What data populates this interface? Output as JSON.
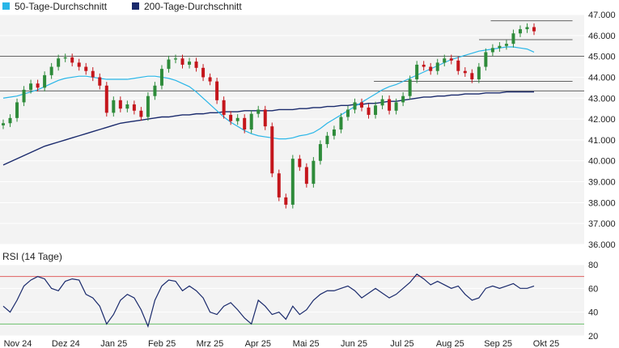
{
  "legend": [
    {
      "label": "50-Tage-Durchschnitt",
      "color": "#29b6e8"
    },
    {
      "label": "200-Tage-Durchschnitt",
      "color": "#1a2a6c"
    }
  ],
  "colors": {
    "up": "#2e8b3a",
    "down": "#c4161c",
    "rsi_line": "#1a2a6c",
    "rsi_upper": "#e06060",
    "rsi_lower": "#6cc06c",
    "panel_bg": "#f3f3f3",
    "grid": "#ffffff",
    "level_line": "#333333"
  },
  "rsi_title": "RSI (14 Tage)",
  "chart_data": {
    "type": "candlestick",
    "price": {
      "ylim": [
        36000,
        47000
      ],
      "y_ticks": [
        "47.000",
        "46.000",
        "45.000",
        "44.000",
        "43.000",
        "42.000",
        "41.000",
        "40.000",
        "39.000",
        "38.000",
        "37.000",
        "36.000"
      ],
      "y_tick_values": [
        47000,
        46000,
        45000,
        44000,
        43000,
        42000,
        41000,
        40000,
        39000,
        38000,
        37000,
        36000
      ],
      "close": [
        41800,
        42050,
        42800,
        43400,
        43700,
        43500,
        44100,
        44500,
        44900,
        44950,
        44700,
        44500,
        44300,
        44000,
        43600,
        42300,
        42900,
        42500,
        42700,
        42400,
        42100,
        43100,
        43600,
        44400,
        44850,
        44900,
        44600,
        44750,
        44450,
        44000,
        43800,
        42900,
        42200,
        41900,
        42050,
        41500,
        42250,
        42450,
        41650,
        39400,
        38250,
        37900,
        40100,
        39700,
        38900,
        40000,
        40800,
        41200,
        41500,
        42100,
        42450,
        42800,
        42550,
        42200,
        42650,
        42950,
        42400,
        42800,
        43100,
        43900,
        44600,
        44500,
        44300,
        44700,
        44900,
        44800,
        44300,
        44200,
        43900,
        44500,
        45200,
        45400,
        45500,
        45600,
        46100,
        46300,
        46400,
        46200
      ],
      "ma50": [
        43000,
        43050,
        43100,
        43200,
        43300,
        43400,
        43550,
        43700,
        43850,
        43950,
        44000,
        44050,
        44050,
        44000,
        43950,
        43900,
        43900,
        43900,
        43900,
        43950,
        44000,
        44050,
        44050,
        44000,
        43950,
        43850,
        43700,
        43550,
        43300,
        43000,
        42700,
        42400,
        42100,
        41850,
        41650,
        41450,
        41300,
        41200,
        41150,
        41100,
        41050,
        41050,
        41100,
        41200,
        41250,
        41350,
        41550,
        41800,
        42000,
        42200,
        42400,
        42600,
        42800,
        43000,
        43200,
        43400,
        43550,
        43650,
        43800,
        43950,
        44100,
        44250,
        44400,
        44550,
        44700,
        44850,
        44950,
        45050,
        45150,
        45250,
        45300,
        45350,
        45400,
        45450,
        45450,
        45400,
        45350,
        45200
      ],
      "ma200": [
        39800,
        39950,
        40100,
        40250,
        40400,
        40550,
        40700,
        40800,
        40900,
        41000,
        41100,
        41200,
        41300,
        41400,
        41500,
        41600,
        41700,
        41800,
        41850,
        41900,
        41950,
        42000,
        42050,
        42100,
        42100,
        42150,
        42200,
        42200,
        42250,
        42250,
        42300,
        42300,
        42350,
        42350,
        42350,
        42400,
        42400,
        42400,
        42400,
        42400,
        42450,
        42450,
        42450,
        42500,
        42500,
        42550,
        42550,
        42600,
        42600,
        42650,
        42650,
        42700,
        42700,
        42750,
        42750,
        42800,
        42850,
        42850,
        42900,
        42950,
        43000,
        43050,
        43050,
        43100,
        43100,
        43150,
        43150,
        43200,
        43200,
        43200,
        43250,
        43250,
        43250,
        43300,
        43300,
        43300,
        43300,
        43300
      ],
      "levels": [
        {
          "value": 46700,
          "from": 0.84,
          "to": 0.98
        },
        {
          "value": 45800,
          "from": 0.82,
          "to": 0.98
        },
        {
          "value": 45000,
          "from": 0.0,
          "to": 1.0
        },
        {
          "value": 43800,
          "from": 0.64,
          "to": 0.98
        },
        {
          "value": 43350,
          "from": 0.0,
          "to": 1.0
        }
      ]
    },
    "rsi": {
      "ylim": [
        20,
        80
      ],
      "y_ticks": [
        "80",
        "60",
        "40",
        "20"
      ],
      "y_tick_values": [
        80,
        60,
        40,
        20
      ],
      "upper": 70,
      "lower": 30,
      "values": [
        45,
        40,
        50,
        62,
        67,
        70,
        68,
        60,
        58,
        66,
        68,
        67,
        55,
        52,
        45,
        30,
        38,
        50,
        55,
        52,
        42,
        28,
        50,
        62,
        67,
        66,
        58,
        62,
        58,
        52,
        40,
        38,
        45,
        48,
        42,
        35,
        30,
        50,
        45,
        38,
        40,
        34,
        45,
        38,
        42,
        50,
        55,
        58,
        58,
        60,
        62,
        58,
        52,
        56,
        60,
        56,
        52,
        55,
        60,
        65,
        72,
        68,
        63,
        66,
        63,
        60,
        62,
        55,
        50,
        52,
        60,
        62,
        60,
        62,
        64,
        60,
        60,
        62
      ]
    },
    "x_ticks": [
      "Nov 24",
      "Dez 24",
      "Jan 25",
      "Feb 25",
      "Mrz 25",
      "Apr 25",
      "Mai 25",
      "Jun 25",
      "Jul 25",
      "Aug 25",
      "Sep 25",
      "Okt 25"
    ]
  }
}
